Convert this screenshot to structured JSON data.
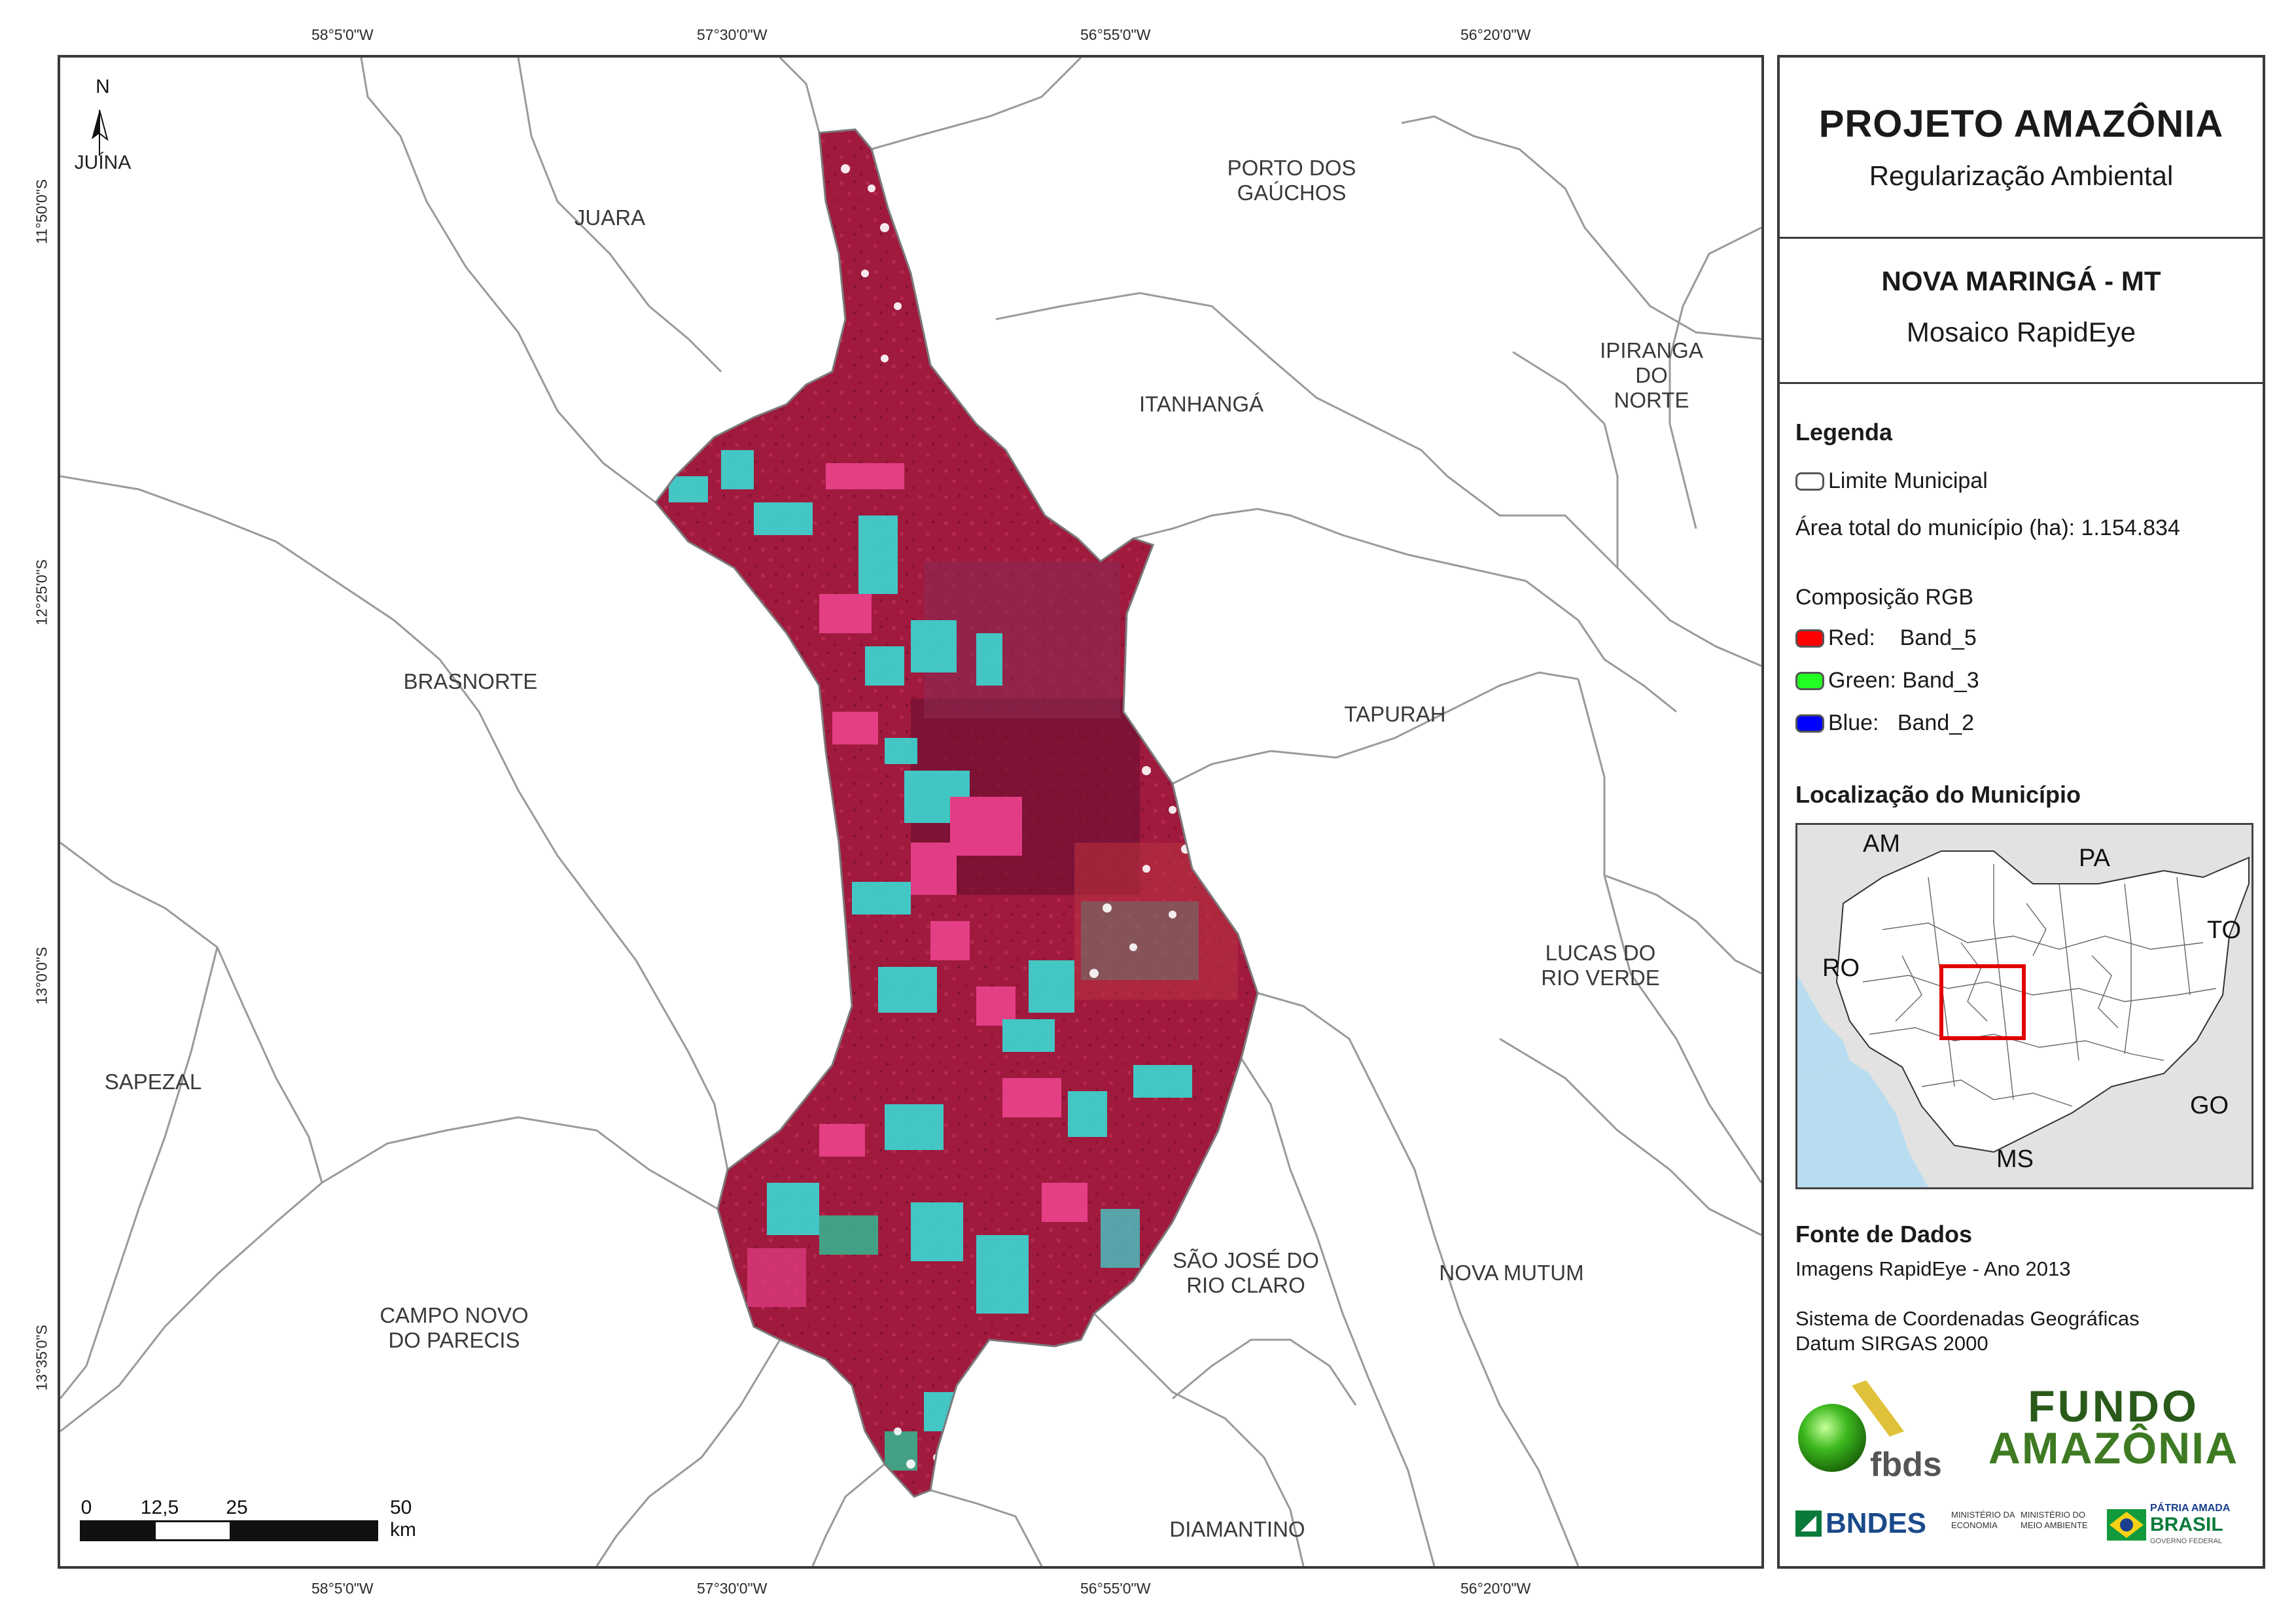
{
  "map": {
    "top_coords": [
      "58°5'0\"W",
      "57°30'0\"W",
      "56°55'0\"W",
      "56°20'0\"W"
    ],
    "bottom_coords": [
      "58°5'0\"W",
      "57°30'0\"W",
      "56°55'0\"W",
      "56°20'0\"W"
    ],
    "left_coords": [
      "11°50'0\"S",
      "12°25'0\"S",
      "13°0'0\"S",
      "13°35'0\"S"
    ],
    "north_letter": "N",
    "north_label": "JUÍNA",
    "municipalities": [
      "JUARA",
      "PORTO DOS\nGAÚCHOS",
      "IPIRANGA\nDO NORTE",
      "ITANHANGÁ",
      "BRASNORTE",
      "TAPURAH",
      "LUCAS DO\nRIO VERDE",
      "SAPEZAL",
      "SÃO JOSÉ DO\nRIO CLARO",
      "NOVA MUTUM",
      "CAMPO NOVO\nDO PARECIS",
      "DIAMANTINO"
    ],
    "scale": {
      "labels": [
        "0",
        "12,5",
        "25",
        "50 km"
      ]
    },
    "colors": {
      "imagery_base": "#a01a3e",
      "imagery_dark": "#6e1030",
      "field_cyan": "#3fd0cc",
      "field_pink": "#e8418a",
      "field_green": "#3fa88a",
      "boundary": "#9a9a9a"
    }
  },
  "panel": {
    "title": "PROJETO AMAZÔNIA",
    "subtitle": "Regularização Ambiental",
    "muni_title": "NOVA MARINGÁ - MT",
    "muni_sub": "Mosaico RapidEye",
    "legend_heading": "Legenda",
    "legend_limite": "Limite Municipal",
    "area_total": "Área total do município (ha): 1.154.834",
    "rgb_heading": "Composição RGB",
    "rgb_red": "Red:    Band_5",
    "rgb_green": "Green: Band_3",
    "rgb_blue": "Blue:   Band_2",
    "rgb_colors": {
      "red": "#ff0000",
      "green": "#22ff22",
      "blue": "#0000ff"
    },
    "location_heading": "Localização do Município",
    "inset_labels": [
      "AM",
      "PA",
      "TO",
      "RO",
      "GO",
      "MS"
    ],
    "sources_heading": "Fonte de Dados",
    "sources_line1": "Imagens RapidEye - Ano 2013",
    "sources_line2": "Sistema de Coordenadas Geográficas",
    "sources_line3": "Datum SIRGAS 2000",
    "logos": {
      "fbds": "fbds",
      "fundo_line1": "FUNDO",
      "fundo_line2": "AMAZÔNIA",
      "bndes": "BNDES",
      "min_economia": "MINISTÉRIO DA\nECONOMIA",
      "min_meio": "MINISTÉRIO DO\nMEIO AMBIENTE",
      "patria": "PÁTRIA AMADA",
      "brasil": "BRASIL",
      "gov": "GOVERNO FEDERAL"
    }
  }
}
